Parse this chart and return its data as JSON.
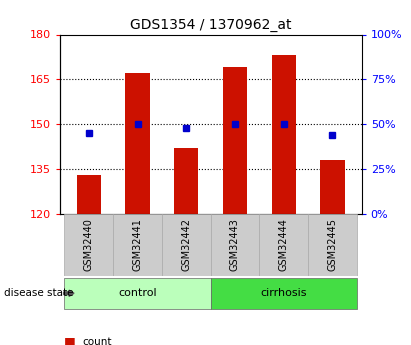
{
  "title": "GDS1354 / 1370962_at",
  "samples": [
    "GSM32440",
    "GSM32441",
    "GSM32442",
    "GSM32443",
    "GSM32444",
    "GSM32445"
  ],
  "counts": [
    133,
    167,
    142,
    169,
    173,
    138
  ],
  "percentiles": [
    45,
    50,
    48,
    50,
    50,
    44
  ],
  "ylim_left": [
    120,
    180
  ],
  "ylim_right": [
    0,
    100
  ],
  "yticks_left": [
    120,
    135,
    150,
    165,
    180
  ],
  "yticks_right": [
    0,
    25,
    50,
    75,
    100
  ],
  "bar_color": "#cc1100",
  "marker_color": "#0000cc",
  "control_color": "#bbffbb",
  "cirrhosis_color": "#44dd44",
  "sample_bg_color": "#cccccc",
  "bar_width": 0.5,
  "baseline": 120,
  "gridlines": [
    135,
    150,
    165
  ]
}
